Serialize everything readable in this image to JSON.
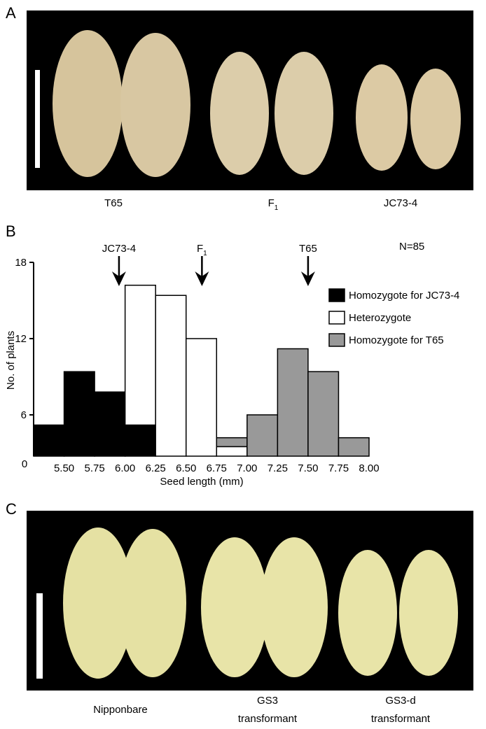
{
  "panel_labels": [
    "A",
    "B",
    "C"
  ],
  "panel_a": {
    "labels": [
      {
        "text": "T65"
      },
      {
        "text": "F",
        "subscript": "1"
      },
      {
        "text": "JC73-4"
      }
    ]
  },
  "panel_c": {
    "labels": [
      [
        "Nipponbare"
      ],
      [
        "GS3",
        "transformant"
      ],
      [
        "GS3-d",
        "transformant"
      ]
    ]
  },
  "chart_data": {
    "type": "stacked-histogram",
    "xlabel": "Seed length (mm)",
    "ylabel": "No. of plants",
    "origin_label": "0",
    "note": "N=85",
    "bins": [
      5.25,
      5.5,
      5.75,
      6.0,
      6.25,
      6.5,
      6.75,
      7.0,
      7.25,
      7.5,
      7.75,
      8.0
    ],
    "xlim": [
      5.25,
      8.0
    ],
    "xticks": [
      {
        "value": 5.5,
        "label": "5.50"
      },
      {
        "value": 5.75,
        "label": "5.75"
      },
      {
        "value": 6.0,
        "label": "6.00"
      },
      {
        "value": 6.25,
        "label": "6.25"
      },
      {
        "value": 6.5,
        "label": "6.50"
      },
      {
        "value": 6.75,
        "label": "6.75"
      },
      {
        "value": 7.0,
        "label": "7.00"
      },
      {
        "value": 7.25,
        "label": "7.25"
      },
      {
        "value": 7.5,
        "label": "7.50"
      },
      {
        "value": 7.75,
        "label": "7.75"
      },
      {
        "value": 8.0,
        "label": "8.00"
      }
    ],
    "ylim": [
      2.75,
      18
    ],
    "yticks": [
      6,
      12,
      18
    ],
    "series": [
      {
        "name": "Homozygote for JC73-4",
        "color": "#000000",
        "values": [
          5.2,
          9.4,
          7.8,
          5.2,
          0,
          0,
          0,
          0,
          0,
          0,
          0
        ]
      },
      {
        "name": "Heterozygote",
        "color": "#ffffff",
        "values": [
          0,
          0,
          0,
          11,
          15.4,
          12,
          3.5,
          0,
          0,
          0,
          0
        ]
      },
      {
        "name": "Homozygote for T65",
        "color": "#999999",
        "values": [
          0,
          0,
          0,
          0,
          0,
          0,
          0.7,
          6,
          11.2,
          9.4,
          4.2
        ]
      }
    ],
    "annotations": [
      {
        "text": "JC73-4",
        "x": 5.95
      },
      {
        "text": "F",
        "subscript": "1",
        "x": 6.63
      },
      {
        "text": "T65",
        "x": 7.5
      }
    ]
  }
}
